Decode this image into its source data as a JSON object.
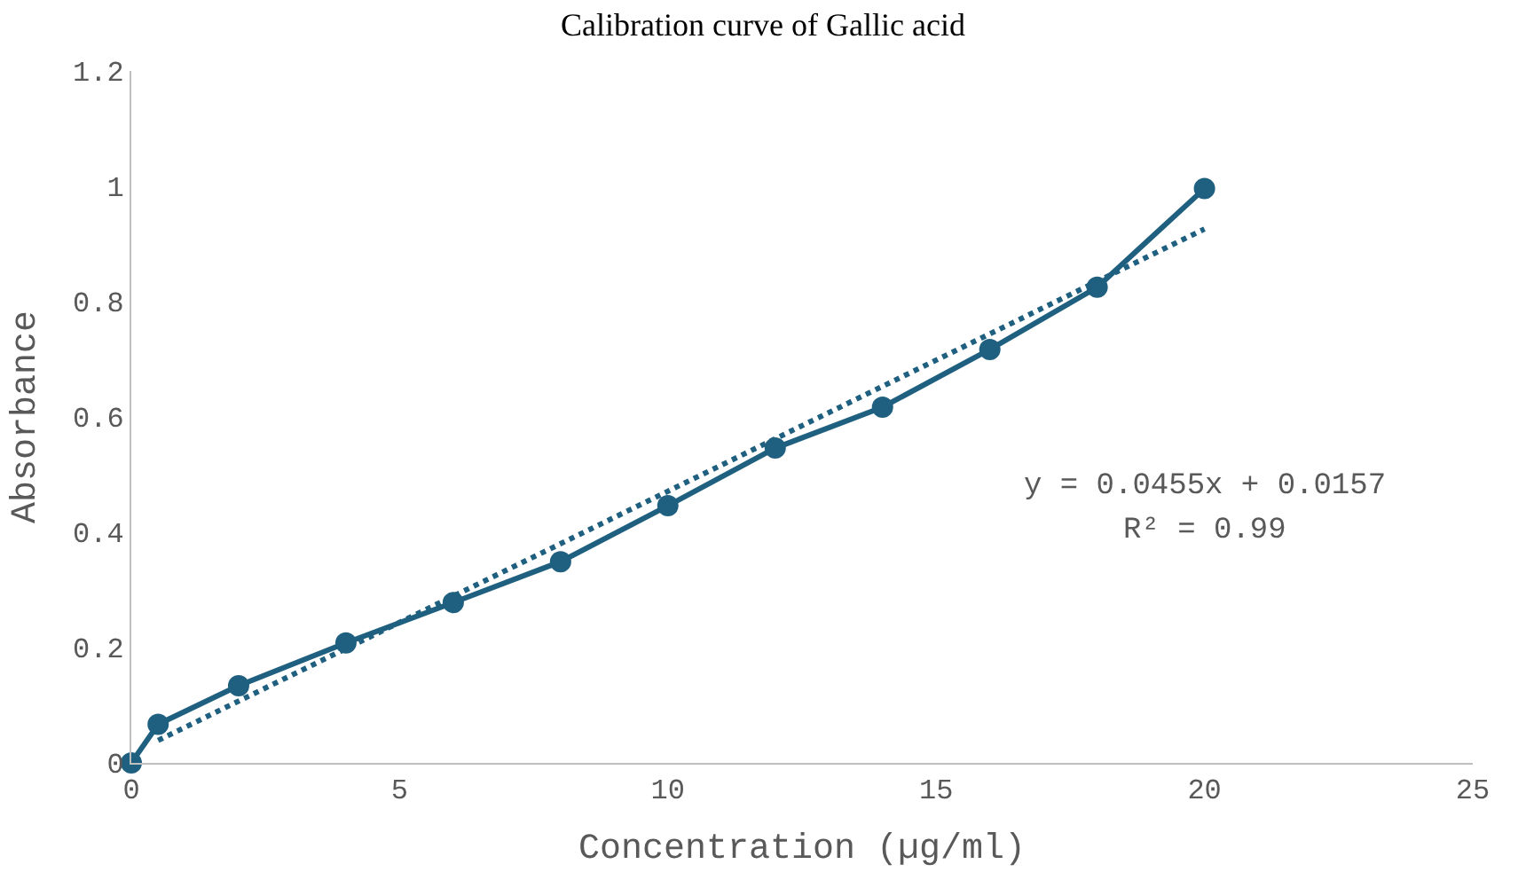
{
  "chart_data": {
    "type": "line",
    "title": "Calibration curve of Gallic acid",
    "xlabel": "Concentration (µg/ml)",
    "ylabel": "Absorbance",
    "x": [
      0,
      0.5,
      2,
      4,
      6,
      8,
      10,
      12,
      14,
      16,
      18,
      20
    ],
    "series": [
      {
        "color": "#1f5f7f",
        "marker": "circle",
        "line_style": "solid",
        "values": [
          0,
          0.067,
          0.134,
          0.208,
          0.278,
          0.349,
          0.446,
          0.546,
          0.617,
          0.717,
          0.825,
          0.996
        ]
      },
      {
        "color": "#1f5f7f",
        "marker": "none",
        "line_style": "dotted",
        "x": [
          0.5,
          20
        ],
        "values": [
          0.039,
          0.926
        ]
      }
    ],
    "annotations": [
      "y = 0.0455x + 0.0157",
      "R² = 0.99"
    ],
    "xlim": [
      0,
      25
    ],
    "xticks": [
      0,
      5,
      10,
      15,
      20,
      25
    ],
    "ylim": [
      0,
      1.2
    ],
    "yticks": [
      0,
      0.2,
      0.4,
      0.6,
      0.8,
      1,
      1.2
    ]
  }
}
